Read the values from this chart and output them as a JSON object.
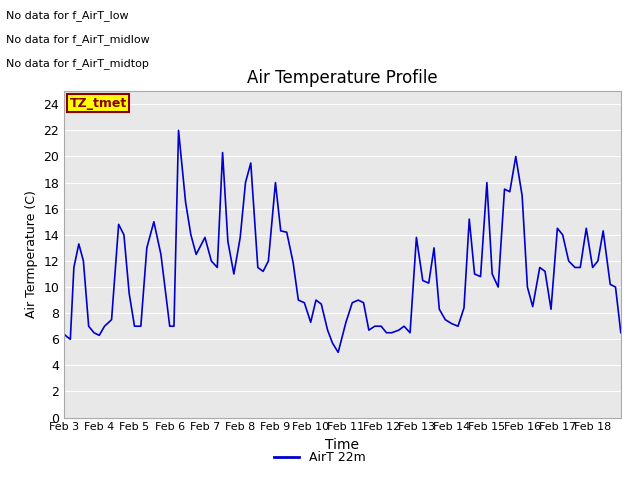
{
  "title": "Air Temperature Profile",
  "xlabel": "Time",
  "ylabel": "Air Termperature (C)",
  "ylim": [
    0,
    25
  ],
  "yticks": [
    0,
    2,
    4,
    6,
    8,
    10,
    12,
    14,
    16,
    18,
    20,
    22,
    24
  ],
  "x_labels": [
    "Feb 3",
    "Feb 4",
    "Feb 5",
    "Feb 6",
    "Feb 7",
    "Feb 8",
    "Feb 9",
    "Feb 10",
    "Feb 11",
    "Feb 12",
    "Feb 13",
    "Feb 14",
    "Feb 15",
    "Feb 16",
    "Feb 17",
    "Feb 18"
  ],
  "line_color": "#0000cc",
  "line_label": "AirT 22m",
  "fig_bg": "#ffffff",
  "plot_bg": "#e8e8e8",
  "annotations": [
    "No data for f_AirT_low",
    "No data for f_AirT_midlow",
    "No data for f_AirT_midtop"
  ],
  "tz_label": "TZ_tmet",
  "data_x": [
    0,
    0.08,
    0.18,
    0.28,
    0.42,
    0.55,
    0.7,
    0.85,
    1.0,
    1.15,
    1.35,
    1.55,
    1.7,
    1.85,
    2.0,
    2.18,
    2.35,
    2.55,
    2.75,
    3.0,
    3.12,
    3.25,
    3.45,
    3.6,
    3.75,
    4.0,
    4.18,
    4.35,
    4.5,
    4.65,
    4.82,
    5.0,
    5.15,
    5.3,
    5.5,
    5.65,
    5.8,
    6.0,
    6.15,
    6.32,
    6.5,
    6.65,
    6.82,
    7.0,
    7.15,
    7.3,
    7.48,
    7.62,
    7.78,
    8.0,
    8.18,
    8.35,
    8.5,
    8.65,
    8.82,
    9.0,
    9.15,
    9.3,
    9.5,
    9.65,
    9.82,
    10.0,
    10.18,
    10.35,
    10.5,
    10.65,
    10.82,
    11.0,
    11.18,
    11.35,
    11.5,
    11.65,
    11.82,
    12.0,
    12.15,
    12.32,
    12.5,
    12.65,
    12.82,
    13.0,
    13.15,
    13.3,
    13.5,
    13.65,
    13.82,
    14.0,
    14.15,
    14.32,
    14.5,
    14.65,
    14.82,
    15.0,
    15.15,
    15.3,
    15.5,
    15.65,
    15.8
  ],
  "data_y": [
    6.4,
    6.2,
    6.0,
    11.5,
    13.3,
    12.0,
    7.0,
    6.5,
    6.3,
    7.0,
    7.5,
    14.8,
    14.0,
    9.5,
    7.0,
    7.0,
    13.0,
    15.0,
    12.5,
    7.0,
    7.0,
    22.0,
    16.5,
    14.0,
    12.5,
    13.8,
    12.0,
    11.5,
    20.3,
    13.5,
    11.0,
    13.8,
    18.0,
    19.5,
    11.5,
    11.2,
    12.0,
    18.0,
    14.3,
    14.2,
    11.9,
    9.0,
    8.8,
    7.3,
    9.0,
    8.7,
    6.7,
    5.7,
    5.0,
    7.3,
    8.8,
    9.0,
    8.8,
    6.7,
    7.0,
    7.0,
    6.5,
    6.5,
    6.7,
    7.0,
    6.5,
    13.8,
    10.5,
    10.3,
    13.0,
    8.3,
    7.5,
    7.2,
    7.0,
    8.4,
    15.2,
    11.0,
    10.8,
    18.0,
    11.0,
    10.0,
    17.5,
    17.3,
    20.0,
    17.0,
    10.0,
    8.5,
    11.5,
    11.2,
    8.3,
    14.5,
    14.0,
    12.0,
    11.5,
    11.5,
    14.5,
    11.5,
    12.0,
    14.3,
    10.2,
    10.0,
    6.5
  ]
}
